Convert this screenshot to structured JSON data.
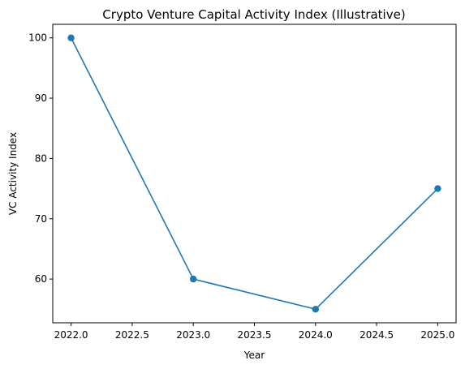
{
  "chart_data": {
    "type": "line",
    "title": "Crypto Venture Capital Activity Index (Illustrative)",
    "xlabel": "Year",
    "ylabel": "VC Activity Index",
    "x": [
      2022,
      2023,
      2024,
      2025
    ],
    "series": [
      {
        "values": [
          100,
          60,
          55,
          75
        ],
        "color": "#1f77b4"
      }
    ],
    "xlim": [
      2021.85,
      2025.15
    ],
    "ylim": [
      52.75,
      102.25
    ],
    "xticks": [
      "2022.0",
      "2022.5",
      "2023.0",
      "2023.5",
      "2024.0",
      "2024.5",
      "2025.0"
    ],
    "yticks": [
      "60",
      "70",
      "80",
      "90",
      "100"
    ],
    "grid": false,
    "legend": "none"
  }
}
